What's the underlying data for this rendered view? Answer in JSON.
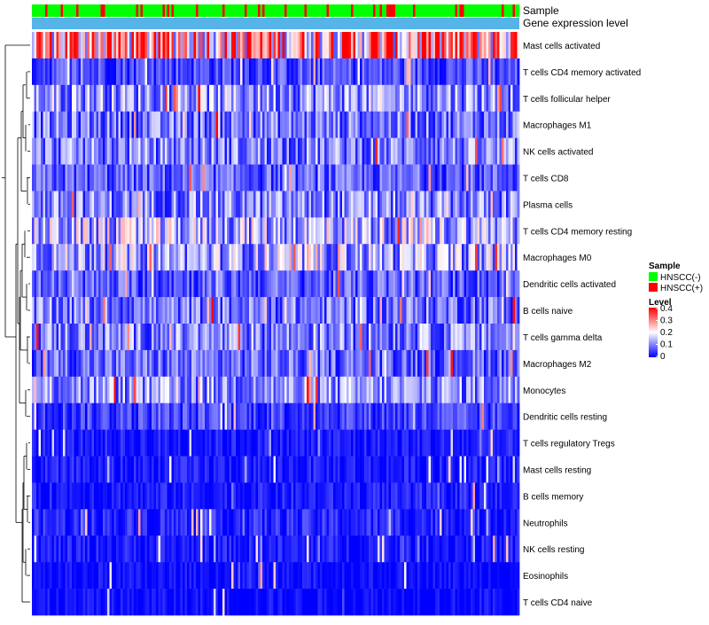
{
  "chart_data": {
    "type": "heatmap",
    "title": "",
    "annotation_rows": [
      "Sample",
      "Gene expression level"
    ],
    "rows": [
      "Mast cells activated",
      "T cells CD4 memory activated",
      "T cells follicular helper",
      "Macrophages M1",
      "NK cells activated",
      "T cells CD8",
      "Plasma cells",
      "T cells CD4 memory resting",
      "Macrophages M0",
      "Dendritic cells activated",
      "B cells naive",
      "T cells gamma delta",
      "Macrophages M2",
      "Monocytes",
      "Dendritic cells resting",
      "T cells regulatory  Tregs",
      "Mast cells resting",
      "B cells memory",
      "Neutrophils",
      "NK cells resting",
      "Eosinophils",
      "T cells CD4 naive"
    ],
    "row_mean_levels": [
      0.27,
      0.06,
      0.12,
      0.09,
      0.1,
      0.07,
      0.1,
      0.14,
      0.13,
      0.07,
      0.09,
      0.1,
      0.08,
      0.11,
      0.05,
      0.02,
      0.02,
      0.02,
      0.03,
      0.02,
      0.01,
      0.01
    ],
    "sample_groups": [
      "HNSCC(-)",
      "HNSCC(+)"
    ],
    "sample_group_colors": [
      "#00ff00",
      "#ff0000"
    ],
    "approx_group_fraction_positive": 0.2,
    "gene_expression_level_color": "#56b4e9",
    "n_columns_approx": 220,
    "colorscale": {
      "low": "#0000ff",
      "mid": "#ffffff",
      "high": "#ff0000"
    },
    "level_range": [
      0,
      0.4
    ],
    "legend": {
      "sample_title": "Sample",
      "level_title": "Level",
      "level_ticks": [
        "0.4",
        "0.3",
        "0.2",
        "0.1",
        "0"
      ],
      "position": "right"
    },
    "dendrogram": "rows"
  }
}
